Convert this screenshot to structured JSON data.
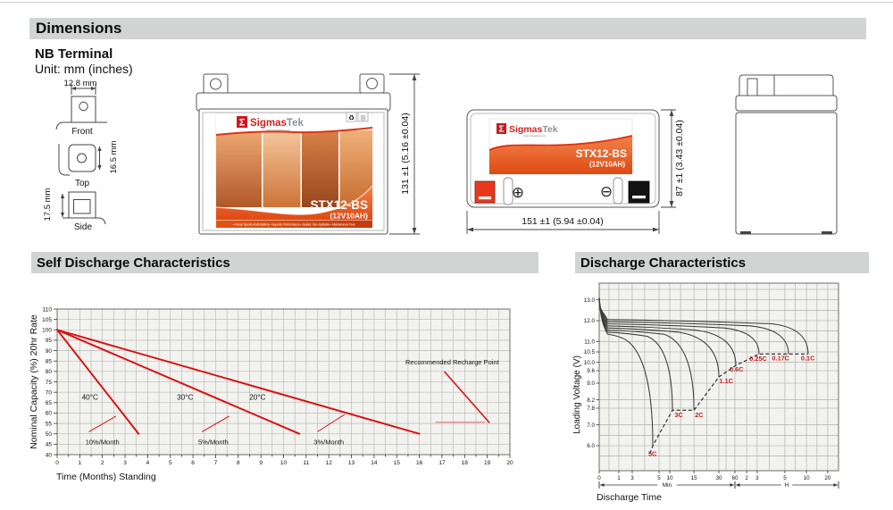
{
  "headers": {
    "dimensions": "Dimensions",
    "self_discharge": "Self Discharge Characteristics",
    "discharge": "Discharge Characteristics"
  },
  "terminal": {
    "title": "NB Terminal",
    "unit": "Unit: mm (inches)",
    "front": {
      "label": "Front",
      "width": "12.8 mm"
    },
    "top": {
      "label": "Top",
      "height": "16.5 mm"
    },
    "side": {
      "label": "Side",
      "height": "17.5 mm"
    }
  },
  "battery": {
    "brand_symbol": "Σ",
    "brand_red": "Sigmas",
    "brand_gray": "Tek",
    "website": "www.sigmastek.com",
    "model": "STX12-BS",
    "rating": "(12V10AH)",
    "features": "• Power Sports AGM Battery   • Superior Performance   • Sealed, Non-Spillable   • Maintenance Free",
    "plus_symbol": "⊕",
    "minus_symbol": "⊖",
    "recycle_icon": "♻",
    "disposal_icon": "⊠",
    "dim_height": "131 ±1 (5.16 ±0.04)",
    "dim_length": "151 ±1 (5.94 ±0.04)",
    "dim_width": "87 ±1 (3.43 ±0.04)"
  },
  "chart_data": [
    {
      "type": "line",
      "title": "Self Discharge Characteristics",
      "xlabel": "Time (Months) Standing",
      "ylabel": "Nominal Capacity (%) 20hr Rate",
      "xlim": [
        0,
        20
      ],
      "ylim": [
        40,
        110
      ],
      "xtick_step": 1,
      "ytick_step": 5,
      "grid": true,
      "line_color": "#d81414",
      "level_color": "#e89090",
      "series": [
        {
          "name": "40°C",
          "rate": "10%/Month",
          "points": [
            [
              0,
              100
            ],
            [
              3.6,
              50
            ]
          ]
        },
        {
          "name": "30°C",
          "rate": "5%/Month",
          "points": [
            [
              0,
              100
            ],
            [
              10.7,
              50
            ]
          ]
        },
        {
          "name": "20°C",
          "rate": "3%/Month",
          "points": [
            [
              0,
              100
            ],
            [
              16.0,
              50
            ]
          ]
        }
      ],
      "temp_labels": [
        {
          "text": "40°C",
          "x": 1.45,
          "y": 67.5
        },
        {
          "text": "30°C",
          "x": 5.65,
          "y": 67.5
        },
        {
          "text": "20°C",
          "x": 8.85,
          "y": 67.5
        }
      ],
      "rate_labels": [
        {
          "text": "10%/Month",
          "x": 2.0,
          "y": 46.0
        },
        {
          "text": "5%/Month",
          "x": 6.9,
          "y": 46.0
        },
        {
          "text": "3%/Month",
          "x": 12.0,
          "y": 46.0
        }
      ],
      "rate_ticks": [
        [
          [
            1.4,
            51
          ],
          [
            2.6,
            58.5
          ]
        ],
        [
          [
            6.4,
            51
          ],
          [
            7.6,
            58.5
          ]
        ],
        [
          [
            11.5,
            51
          ],
          [
            12.7,
            59.3
          ]
        ]
      ],
      "recharge": {
        "text": "Recommended Recharge Point",
        "text_x": 17.45,
        "text_y": 84.5,
        "pointer": [
          [
            17.1,
            80.0
          ],
          [
            19.1,
            55.3
          ]
        ],
        "level_line": [
          [
            16.7,
            55.6
          ],
          [
            18.9,
            55.6
          ]
        ]
      }
    },
    {
      "type": "line",
      "title": "Discharge Characteristics",
      "xlabel": "Discharge Time",
      "ylabel": "Loading  Voltage (V)",
      "ylim": [
        4.8,
        13.8
      ],
      "yticks": [
        13.0,
        12.0,
        11.0,
        10.5,
        10.0,
        9.6,
        9.0,
        8.2,
        7.8,
        7.0,
        6.0
      ],
      "xticks": [
        {
          "label": "0",
          "f": 0.0
        },
        {
          "label": "1",
          "f": 0.082
        },
        {
          "label": "3",
          "f": 0.138
        },
        {
          "label": "5",
          "f": 0.25
        },
        {
          "label": "10",
          "f": 0.295
        },
        {
          "label": "15",
          "f": 0.396
        },
        {
          "label": "30",
          "f": 0.5
        },
        {
          "label": "60",
          "f": 0.567
        },
        {
          "label": "2",
          "f": 0.616
        },
        {
          "label": "3",
          "f": 0.66
        },
        {
          "label": "5",
          "f": 0.776
        },
        {
          "label": "10",
          "f": 0.866
        },
        {
          "label": "20",
          "f": 0.955
        }
      ],
      "grid_y": [
        5.5,
        6.0,
        6.5,
        7.0,
        7.8,
        8.2,
        9.0,
        9.6,
        10.0,
        10.5,
        11.0,
        11.5,
        12.0,
        12.5,
        13.0,
        13.5
      ],
      "grid_x_extra": [
        0.041,
        0.19,
        0.34,
        0.45,
        0.53,
        0.71,
        0.82,
        0.91
      ],
      "x_groups": [
        {
          "label": "Min",
          "from": 0.0,
          "to": 0.567
        },
        {
          "label": "H",
          "from": 0.567,
          "to": 1.0
        }
      ],
      "start_voltage": 13.1,
      "series": [
        {
          "name": "0.1C",
          "plateau": 12.05,
          "knee": 0.72,
          "end": [
            0.873,
            10.4
          ],
          "label": [
            0.843,
            10.1
          ]
        },
        {
          "name": "0.17C",
          "plateau": 11.95,
          "knee": 0.63,
          "end": [
            0.791,
            10.4
          ],
          "label": [
            0.722,
            10.1
          ]
        },
        {
          "name": "0.25C",
          "plateau": 11.85,
          "knee": 0.52,
          "end": [
            0.668,
            10.4
          ],
          "label": [
            0.628,
            10.08
          ]
        },
        {
          "name": "0.6C",
          "plateau": 11.75,
          "knee": 0.4,
          "end": [
            0.571,
            9.85
          ],
          "label": [
            0.545,
            9.55
          ]
        },
        {
          "name": "1.1C",
          "plateau": 11.65,
          "knee": 0.33,
          "end": [
            0.5,
            9.3
          ],
          "label": [
            0.502,
            9.0
          ]
        },
        {
          "name": "2C",
          "plateau": 11.55,
          "knee": 0.27,
          "end": [
            0.396,
            7.7
          ],
          "label": [
            0.4,
            7.38
          ]
        },
        {
          "name": "3C",
          "plateau": 11.45,
          "knee": 0.2,
          "end": [
            0.306,
            7.7
          ],
          "label": [
            0.315,
            7.38
          ]
        },
        {
          "name": "5C",
          "plateau": 11.35,
          "knee": 0.1,
          "end": [
            0.224,
            6.0
          ],
          "label": [
            0.205,
            5.5
          ]
        }
      ],
      "envelope": [
        [
          0.212,
          5.62
        ],
        [
          0.224,
          6.0
        ],
        [
          0.306,
          7.7
        ],
        [
          0.396,
          7.7
        ],
        [
          0.5,
          9.3
        ],
        [
          0.571,
          9.85
        ],
        [
          0.668,
          10.4
        ],
        [
          0.791,
          10.4
        ],
        [
          0.873,
          10.4
        ]
      ],
      "label_color": "#c41f1f"
    }
  ]
}
